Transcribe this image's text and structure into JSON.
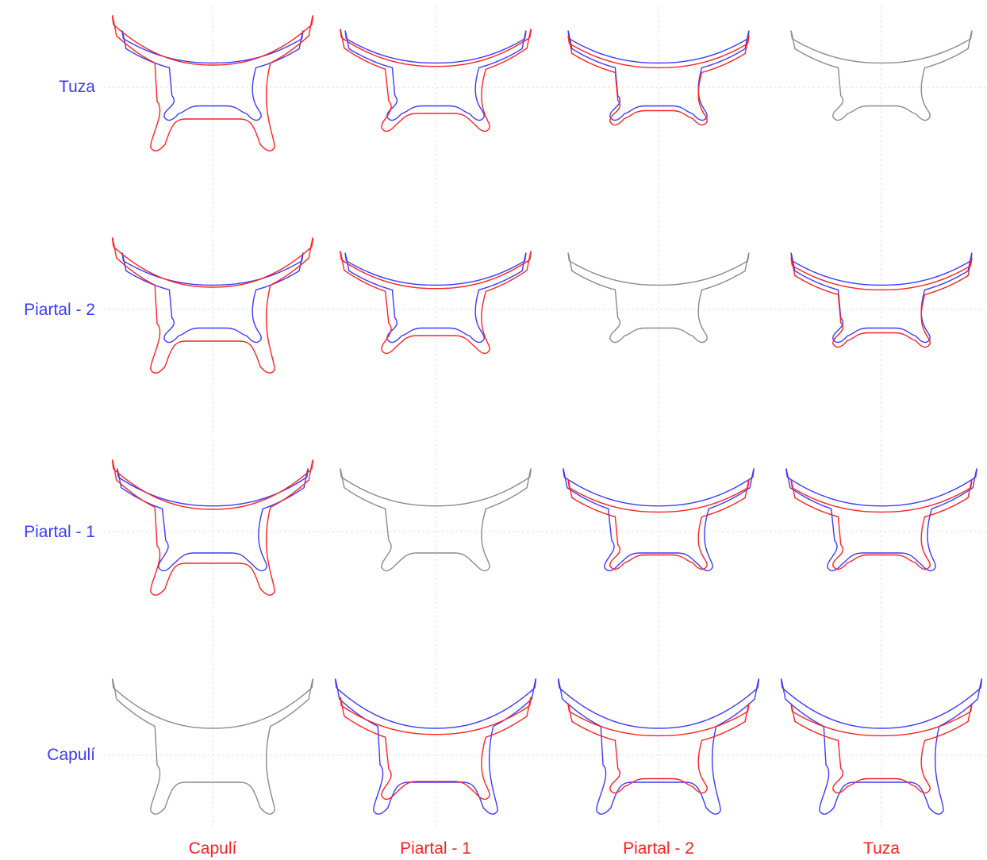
{
  "row_labels": [
    "Tuza",
    "Piartal - 2",
    "Piartal - 1",
    "Capulí"
  ],
  "col_labels": [
    "Capulí",
    "Piartal - 1",
    "Piartal - 2",
    "Tuza"
  ],
  "colors": {
    "row": "#3a3aff",
    "col": "#ff2020",
    "self": "#8a8a8a",
    "grid": "#e2e2e2"
  },
  "shapes": {
    "Capulí": {
      "size": 1.0,
      "armFlare": 1.0,
      "crossHeight": 1.0,
      "legLen": 1.0,
      "legSpread": 1.0
    },
    "Piartal - 1": {
      "size": 0.95,
      "armFlare": 0.85,
      "crossHeight": 0.55,
      "legLen": 0.5,
      "legSpread": 0.85
    },
    "Piartal - 2": {
      "size": 0.9,
      "armFlare": 0.8,
      "crossHeight": 0.35,
      "legLen": 0.35,
      "legSpread": 0.75
    },
    "Tuza": {
      "size": 0.9,
      "armFlare": 0.8,
      "crossHeight": 0.35,
      "legLen": 0.35,
      "legSpread": 0.75
    }
  }
}
